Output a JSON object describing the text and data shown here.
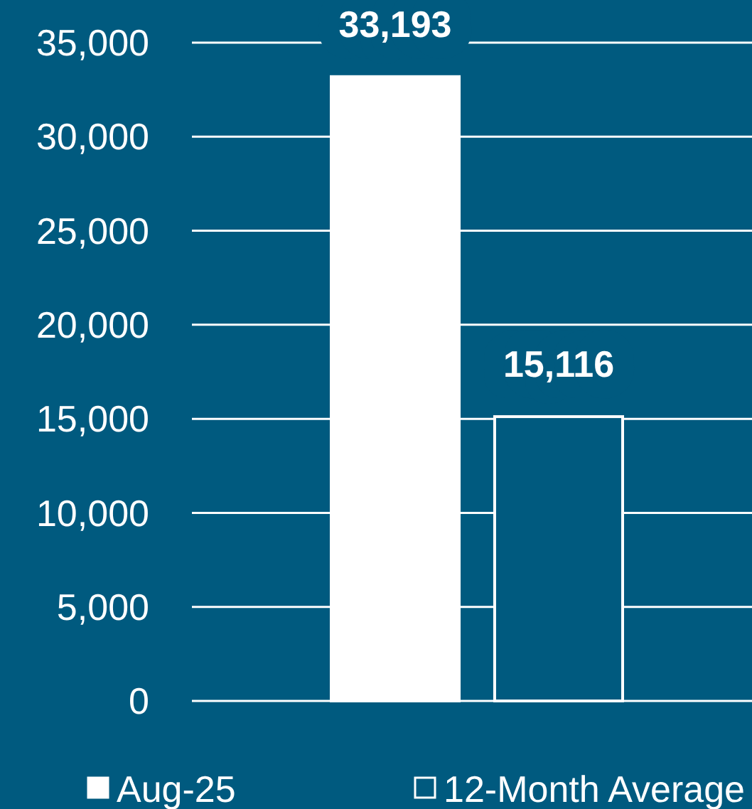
{
  "chart_data": {
    "type": "bar",
    "categories": [
      null,
      null
    ],
    "series": [
      {
        "name": "Aug-25",
        "color": "#ffffff",
        "values": [
          33193,
          null
        ],
        "value_labels": [
          "33,193",
          null
        ]
      },
      {
        "name": "12-Month Average",
        "color": "#005a7f",
        "values": [
          null,
          15116
        ],
        "value_labels": [
          null,
          "15,116"
        ]
      }
    ],
    "ylim": [
      0,
      35000
    ],
    "yticks": [
      {
        "value": 0,
        "label": "0"
      },
      {
        "value": 5000,
        "label": "5,000"
      },
      {
        "value": 10000,
        "label": "10,000"
      },
      {
        "value": 15000,
        "label": "15,000"
      },
      {
        "value": 20000,
        "label": "20,000"
      },
      {
        "value": 25000,
        "label": "25,000"
      },
      {
        "value": 30000,
        "label": "30,000"
      },
      {
        "value": 35000,
        "label": "35,000"
      }
    ],
    "grid": "y",
    "legend": "bottom"
  }
}
